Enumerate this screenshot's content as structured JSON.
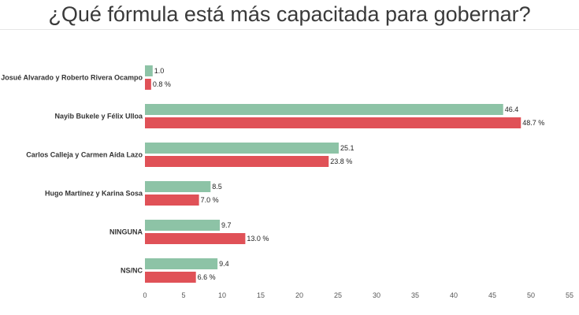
{
  "chart_data": {
    "type": "bar",
    "orientation": "horizontal",
    "title": "¿Qué fórmula está más capacitada para gobernar?",
    "categories": [
      "Josué Alvarado y Roberto Rivera Ocampo",
      "Nayib Bukele y Félix Ulloa",
      "Carlos Calleja y Carmen Aída Lazo",
      "Hugo Martínez y Karina Sosa",
      "NINGUNA",
      "NS/NC"
    ],
    "series": [
      {
        "color": "#8dc3a6",
        "values": [
          1.0,
          46.4,
          25.1,
          8.5,
          9.7,
          9.4
        ],
        "labels": [
          "1.0",
          "46.4",
          "25.1",
          "8.5",
          "9.7",
          "9.4"
        ]
      },
      {
        "color": "#e05157",
        "values": [
          0.8,
          48.7,
          23.8,
          7.0,
          13.0,
          6.6
        ],
        "labels": [
          "0.8 %",
          "48.7 %",
          "23.8 %",
          "7.0 %",
          "13.0 %",
          "6.6 %"
        ]
      }
    ],
    "xlim": [
      0,
      55
    ],
    "xticks": [
      "0",
      "5",
      "10",
      "15",
      "20",
      "25",
      "30",
      "35",
      "40",
      "45",
      "50",
      "55"
    ],
    "grid": false,
    "legend": "none",
    "xlabel": "",
    "ylabel": ""
  }
}
